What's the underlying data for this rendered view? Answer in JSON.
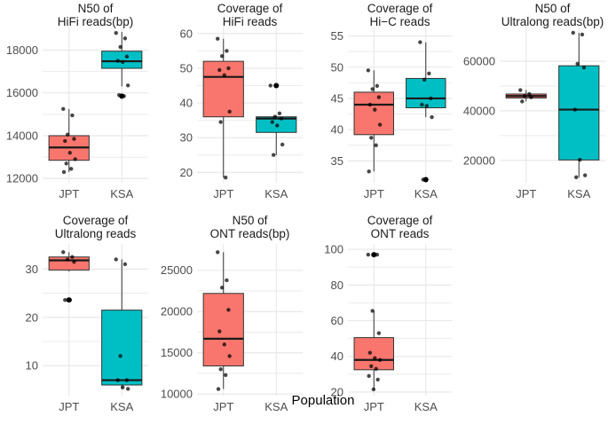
{
  "figure": {
    "x_axis_title": "Population"
  },
  "colors": {
    "JPT": "#F8766D",
    "KSA": "#00BFC4"
  },
  "chart_data": [
    {
      "type": "box",
      "title": [
        "N50 of",
        "HiFi reads(bp)"
      ],
      "categories": [
        "JPT",
        "KSA"
      ],
      "yticks": [
        12000,
        14000,
        16000,
        18000
      ],
      "ytick_labels": [
        "12000",
        "14000",
        "16000",
        "18000"
      ],
      "ylim": [
        11800,
        19100
      ],
      "boxes": [
        {
          "group": "JPT",
          "q1": 12850,
          "median": 13450,
          "q3": 14000,
          "whisker_low": 12300,
          "whisker_high": 15250,
          "outliers": [],
          "points": [
            15250,
            14950,
            14050,
            13850,
            13750,
            13200,
            12900,
            12700,
            12450,
            12300
          ]
        },
        {
          "group": "KSA",
          "q1": 17150,
          "median": 17480,
          "q3": 17950,
          "whisker_low": 16300,
          "whisker_high": 18850,
          "outliers": [
            15850
          ],
          "points": [
            18800,
            18550,
            18150,
            17700,
            17500,
            17450,
            16350,
            15900,
            15850
          ]
        }
      ]
    },
    {
      "type": "box",
      "title": [
        "Coverage of",
        "HiFi reads"
      ],
      "categories": [
        "JPT",
        "KSA"
      ],
      "yticks": [
        20,
        30,
        40,
        50,
        60
      ],
      "ytick_labels": [
        "20",
        "30",
        "40",
        "50",
        "60"
      ],
      "ylim": [
        17,
        62
      ],
      "boxes": [
        {
          "group": "JPT",
          "q1": 36,
          "median": 47.5,
          "q3": 52,
          "whisker_low": 18.5,
          "whisker_high": 58.5,
          "outliers": [],
          "points": [
            58.5,
            55,
            53.5,
            50,
            49.5,
            48,
            37.5,
            34.5,
            18.5
          ]
        },
        {
          "group": "KSA",
          "q1": 31.5,
          "median": 35.5,
          "q3": 36,
          "whisker_low": 25,
          "whisker_high": 36.5,
          "outliers": [
            45
          ],
          "points": [
            45,
            37,
            36,
            35.5,
            34.5,
            33.5,
            28,
            25
          ]
        }
      ]
    },
    {
      "type": "box",
      "title": [
        "Coverage of",
        "Hi−C reads"
      ],
      "categories": [
        "JPT",
        "KSA"
      ],
      "yticks": [
        35,
        40,
        45,
        50,
        55
      ],
      "ytick_labels": [
        "35",
        "40",
        "45",
        "50",
        "55"
      ],
      "ylim": [
        31.5,
        56.5
      ],
      "boxes": [
        {
          "group": "JPT",
          "q1": 39.2,
          "median": 44,
          "q3": 46,
          "whisker_low": 33.3,
          "whisker_high": 49.5,
          "outliers": [],
          "points": [
            49.5,
            47,
            46.5,
            45.2,
            44,
            43.2,
            40.8,
            38.7,
            37.5,
            33.3
          ]
        },
        {
          "group": "KSA",
          "q1": 43.5,
          "median": 45,
          "q3": 48.2,
          "whisker_low": 42,
          "whisker_high": 54,
          "outliers": [
            32
          ],
          "points": [
            54,
            49,
            48,
            45,
            44,
            43.8,
            42,
            32
          ]
        }
      ]
    },
    {
      "type": "box",
      "title": [
        "N50 of",
        "Ultralong reads(bp)"
      ],
      "categories": [
        "JPT",
        "KSA"
      ],
      "yticks": [
        20000,
        40000,
        60000
      ],
      "ytick_labels": [
        "20000",
        "40000",
        "60000"
      ],
      "ylim": [
        11000,
        74000
      ],
      "boxes": [
        {
          "group": "JPT",
          "q1": 45200,
          "median": 46000,
          "q3": 46800,
          "whisker_low": 43800,
          "whisker_high": 48400,
          "outliers": [],
          "points": [
            48400,
            46800,
            46000,
            45500,
            43800
          ]
        },
        {
          "group": "KSA",
          "q1": 20200,
          "median": 40500,
          "q3": 58200,
          "whisker_low": 13200,
          "whisker_high": 71500,
          "outliers": [],
          "points": [
            71500,
            70800,
            59000,
            57500,
            40500,
            20300,
            14000,
            13200
          ]
        }
      ]
    },
    {
      "type": "box",
      "title": [
        "Coverage of",
        "Ultralong reads"
      ],
      "categories": [
        "JPT",
        "KSA"
      ],
      "yticks": [
        10,
        20,
        30
      ],
      "ytick_labels": [
        "10",
        "20",
        "30"
      ],
      "ylim": [
        3.8,
        35.2
      ],
      "boxes": [
        {
          "group": "JPT",
          "q1": 29.8,
          "median": 31.8,
          "q3": 32.5,
          "whisker_low": 29.5,
          "whisker_high": 33.5,
          "outliers": [
            23.6
          ],
          "points": [
            33.5,
            32.5,
            32,
            31.5,
            23.6,
            23.6
          ]
        },
        {
          "group": "KSA",
          "q1": 6,
          "median": 7,
          "q3": 21.5,
          "whisker_low": 5.2,
          "whisker_high": 32,
          "outliers": [],
          "points": [
            32,
            31,
            12,
            7,
            7,
            5.5,
            5.2
          ]
        }
      ]
    },
    {
      "type": "box",
      "title": [
        "N50 of",
        "ONT reads(bp)"
      ],
      "categories": [
        "JPT",
        "KSA"
      ],
      "yticks": [
        10000,
        15000,
        20000,
        25000
      ],
      "ytick_labels": [
        "10000",
        "15000",
        "20000",
        "25000"
      ],
      "ylim": [
        9800,
        28200
      ],
      "boxes": [
        {
          "group": "JPT",
          "q1": 13400,
          "median": 16700,
          "q3": 22200,
          "whisker_low": 10600,
          "whisker_high": 27200,
          "outliers": [],
          "points": [
            27200,
            23800,
            22900,
            20200,
            17600,
            16000,
            14600,
            13000,
            12300,
            10600
          ]
        }
      ]
    },
    {
      "type": "box",
      "title": [
        "Coverage of",
        "ONT reads"
      ],
      "categories": [
        "JPT",
        "KSA"
      ],
      "yticks": [
        20,
        40,
        60,
        80,
        100
      ],
      "ytick_labels": [
        "20",
        "40",
        "60",
        "80",
        "100"
      ],
      "ylim": [
        18,
        103
      ],
      "boxes": [
        {
          "group": "JPT",
          "q1": 32.5,
          "median": 38,
          "q3": 50.5,
          "whisker_low": 21.5,
          "whisker_high": 65.5,
          "outliers": [
            97
          ],
          "points": [
            97,
            97,
            65.5,
            53,
            42,
            39,
            38,
            34.5,
            33,
            29,
            27,
            21.5
          ]
        }
      ]
    }
  ]
}
